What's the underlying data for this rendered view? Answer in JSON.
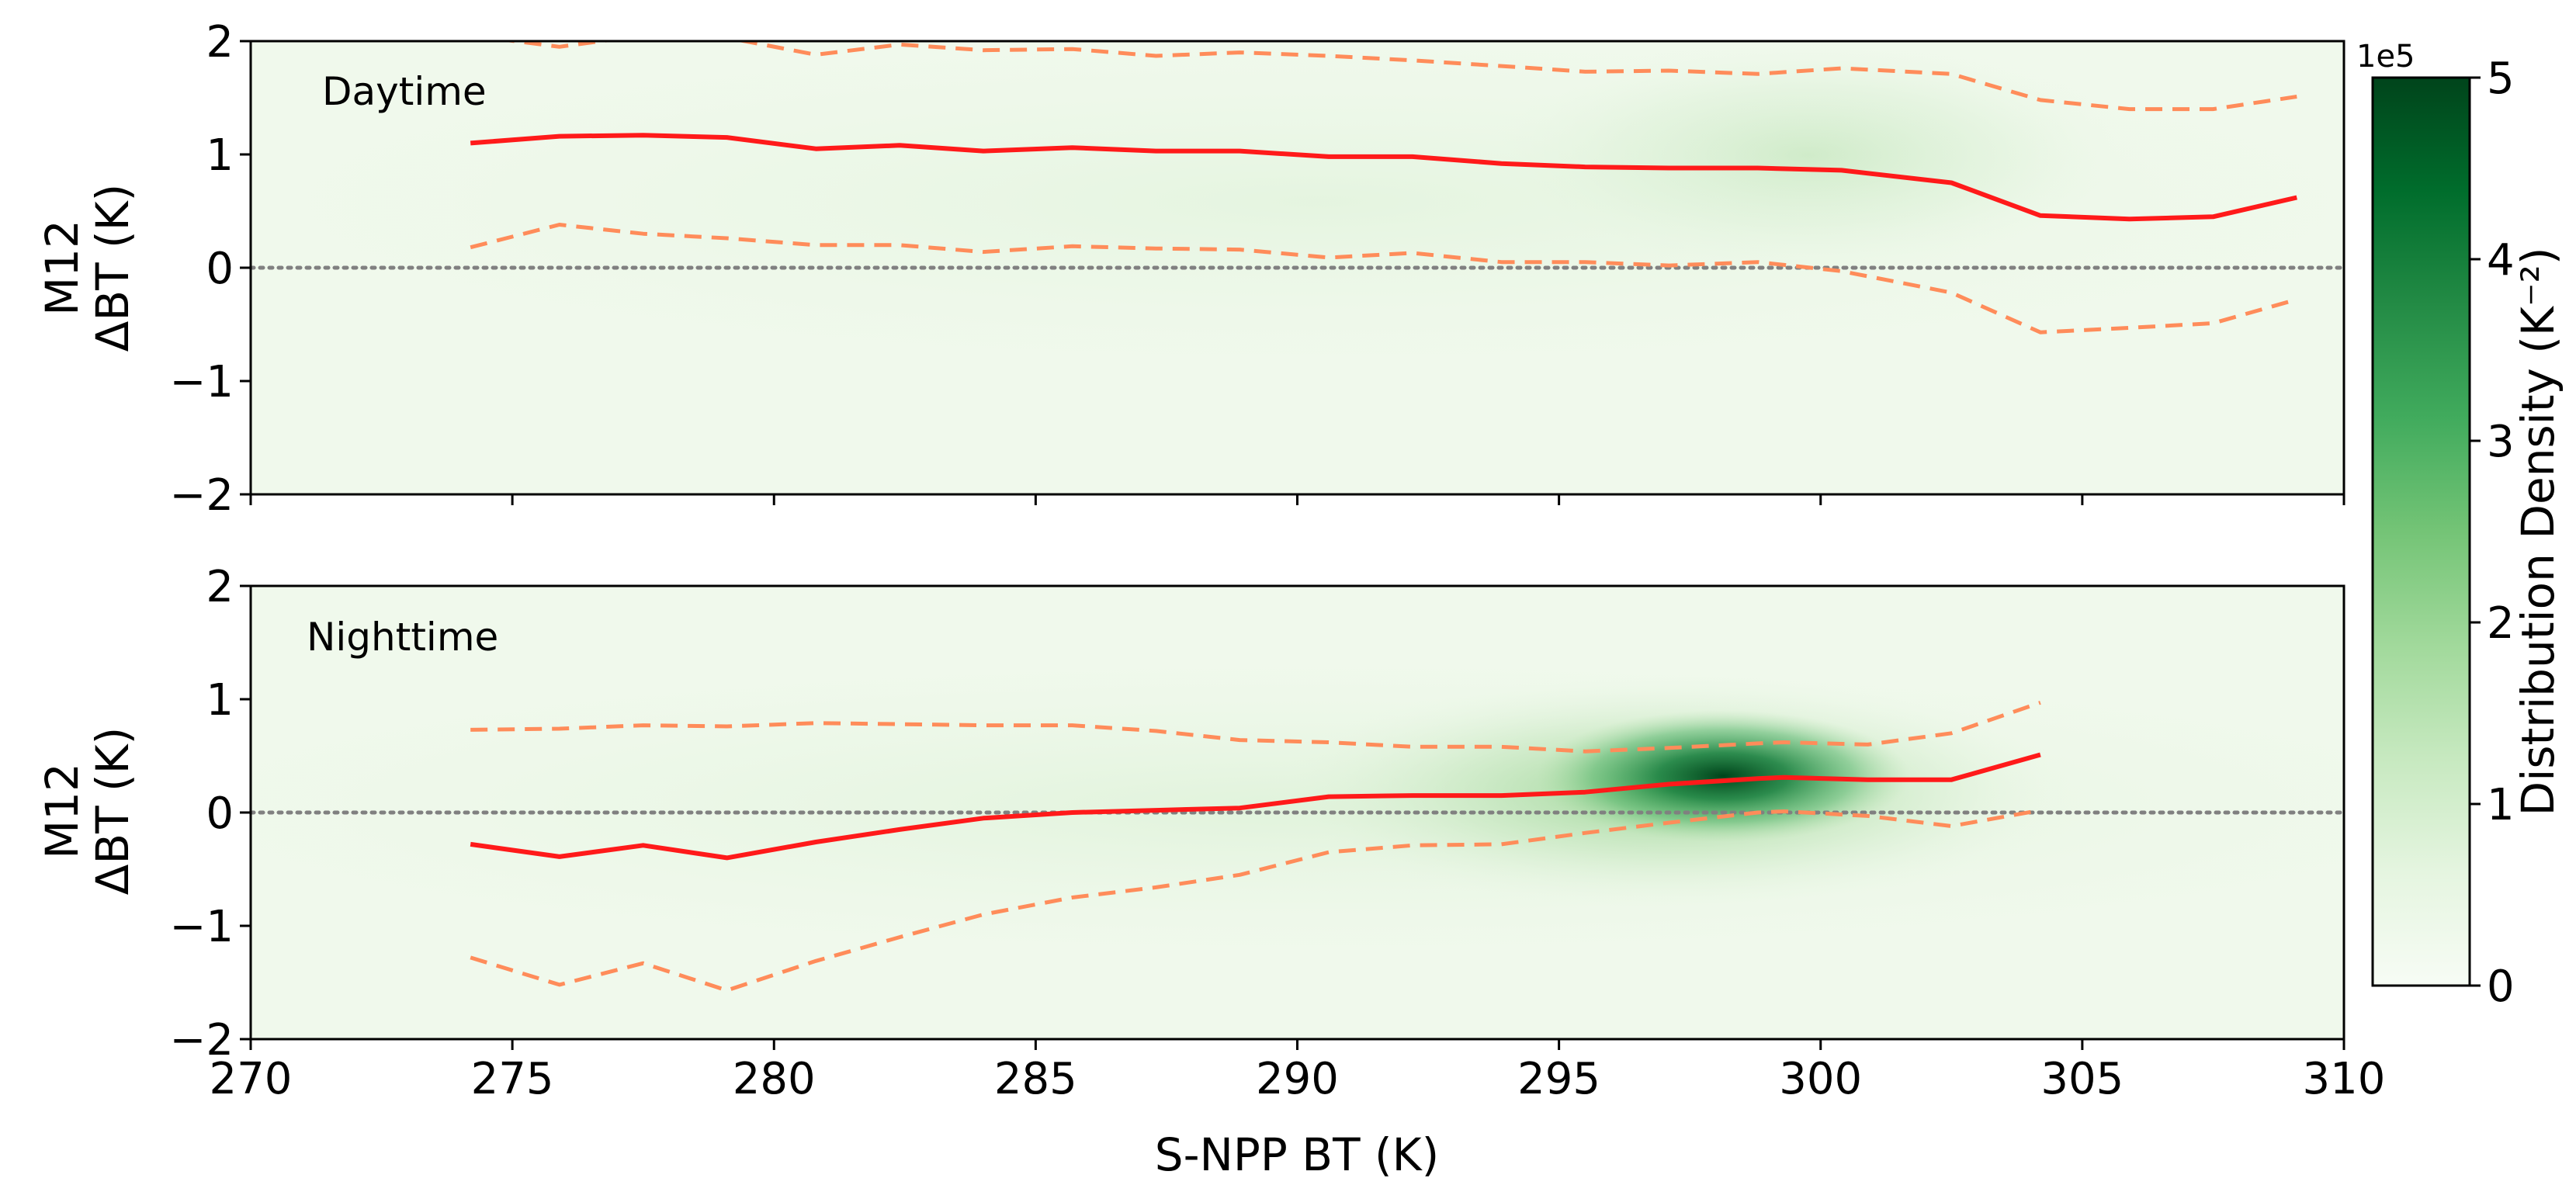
{
  "chart_data": [
    {
      "type": "line",
      "panel_label": "Daytime",
      "ylabel": [
        "M12",
        "ΔBT (K)"
      ],
      "xlim": [
        270,
        310
      ],
      "ylim": [
        -2,
        2
      ],
      "xticks": [
        "270",
        "275",
        "280",
        "285",
        "290",
        "295",
        "300",
        "305",
        "310"
      ],
      "yticks": [
        "−2",
        "−1",
        "0",
        "1",
        "2"
      ],
      "reference_line_y": 0,
      "density_peak": {
        "x": 300,
        "y": 1.0,
        "relative_intensity": 0.15
      },
      "x": [
        274.2,
        275.9,
        277.5,
        279.1,
        280.8,
        282.4,
        284.0,
        285.7,
        287.3,
        288.9,
        290.6,
        292.2,
        293.9,
        295.5,
        297.1,
        298.8,
        300.4,
        302.5,
        304.2,
        305.9,
        307.5,
        309.1
      ],
      "series": [
        {
          "style": "solid",
          "color": "#ff1a1a",
          "values": [
            1.1,
            1.16,
            1.17,
            1.15,
            1.05,
            1.08,
            1.03,
            1.06,
            1.03,
            1.03,
            0.98,
            0.98,
            0.92,
            0.89,
            0.88,
            0.88,
            0.86,
            0.75,
            0.46,
            0.43,
            0.45,
            0.62
          ]
        },
        {
          "style": "dashed",
          "color": "#ff8c5a",
          "values": [
            2.05,
            1.95,
            2.05,
            2.03,
            1.88,
            1.97,
            1.92,
            1.93,
            1.87,
            1.9,
            1.87,
            1.83,
            1.78,
            1.73,
            1.74,
            1.71,
            1.76,
            1.71,
            1.48,
            1.4,
            1.4,
            1.51
          ]
        },
        {
          "style": "dashed",
          "color": "#ff8c5a",
          "values": [
            0.18,
            0.38,
            0.3,
            0.26,
            0.2,
            0.2,
            0.14,
            0.19,
            0.17,
            0.16,
            0.09,
            0.13,
            0.05,
            0.05,
            0.02,
            0.05,
            -0.03,
            -0.22,
            -0.57,
            -0.53,
            -0.49,
            -0.28
          ]
        }
      ]
    },
    {
      "type": "line",
      "panel_label": "Nighttime",
      "ylabel": [
        "M12",
        "ΔBT (K)"
      ],
      "xlabel": "S-NPP BT (K)",
      "xlim": [
        270,
        310
      ],
      "ylim": [
        -2,
        2
      ],
      "xticks": [
        "270",
        "275",
        "280",
        "285",
        "290",
        "295",
        "300",
        "305",
        "310"
      ],
      "yticks": [
        "−2",
        "−1",
        "0",
        "1",
        "2"
      ],
      "reference_line_y": 0,
      "density_peak": {
        "x": 298.5,
        "y": 0.3,
        "relative_intensity": 1.0
      },
      "x": [
        274.2,
        275.9,
        277.5,
        279.1,
        280.8,
        282.4,
        284.0,
        285.7,
        287.3,
        288.9,
        290.6,
        292.2,
        293.9,
        295.5,
        297.1,
        298.8,
        299.3,
        300.9,
        302.5,
        304.2
      ],
      "series": [
        {
          "style": "solid",
          "color": "#ff1a1a",
          "values": [
            -0.28,
            -0.39,
            -0.29,
            -0.4,
            -0.26,
            -0.15,
            -0.05,
            0.0,
            0.02,
            0.04,
            0.14,
            0.15,
            0.15,
            0.18,
            0.25,
            0.3,
            0.31,
            0.29,
            0.29,
            0.51
          ]
        },
        {
          "style": "dashed",
          "color": "#ff8c5a",
          "values": [
            0.73,
            0.74,
            0.77,
            0.76,
            0.79,
            0.78,
            0.77,
            0.77,
            0.72,
            0.64,
            0.62,
            0.58,
            0.58,
            0.54,
            0.57,
            0.61,
            0.62,
            0.6,
            0.7,
            0.97
          ]
        },
        {
          "style": "dashed",
          "color": "#ff8c5a",
          "values": [
            -1.28,
            -1.52,
            -1.33,
            -1.57,
            -1.31,
            -1.1,
            -0.9,
            -0.75,
            -0.66,
            -0.55,
            -0.35,
            -0.29,
            -0.28,
            -0.18,
            -0.09,
            0.0,
            0.01,
            -0.03,
            -0.12,
            0.02
          ]
        }
      ]
    }
  ],
  "colorbar": {
    "label": "Distribution Density (K⁻²)",
    "scale_text": "1e5",
    "range": [
      0,
      5
    ],
    "ticks": [
      "0",
      "1",
      "2",
      "3",
      "4",
      "5"
    ],
    "colormap": "Greens",
    "color_low": "#f7fcf5",
    "color_high": "#00441b"
  },
  "colors": {
    "median_line": "#ff1a1a",
    "bound_lines": "#ff8c5a",
    "zero_line": "#808080"
  }
}
